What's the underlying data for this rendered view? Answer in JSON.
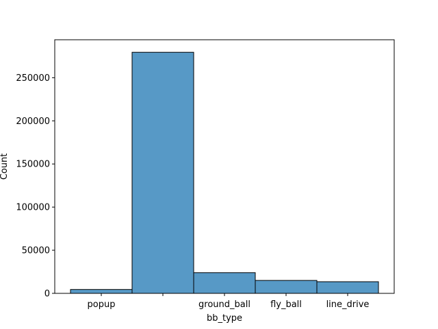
{
  "chart_data": {
    "type": "bar",
    "categories": [
      "popup",
      "",
      "ground_ball",
      "fly_ball",
      "line_drive"
    ],
    "values": [
      4500,
      279500,
      24000,
      15000,
      13500
    ],
    "title": "",
    "xlabel": "bb_type",
    "ylabel": "Count",
    "ylim": [
      0,
      294000
    ],
    "yticks": [
      0,
      50000,
      100000,
      150000,
      200000,
      250000
    ],
    "ytick_labels": [
      "0",
      "50000",
      "100000",
      "150000",
      "200000",
      "250000"
    ],
    "grid": false,
    "bar_color": "#5799c6",
    "edge_color": "#000000"
  }
}
